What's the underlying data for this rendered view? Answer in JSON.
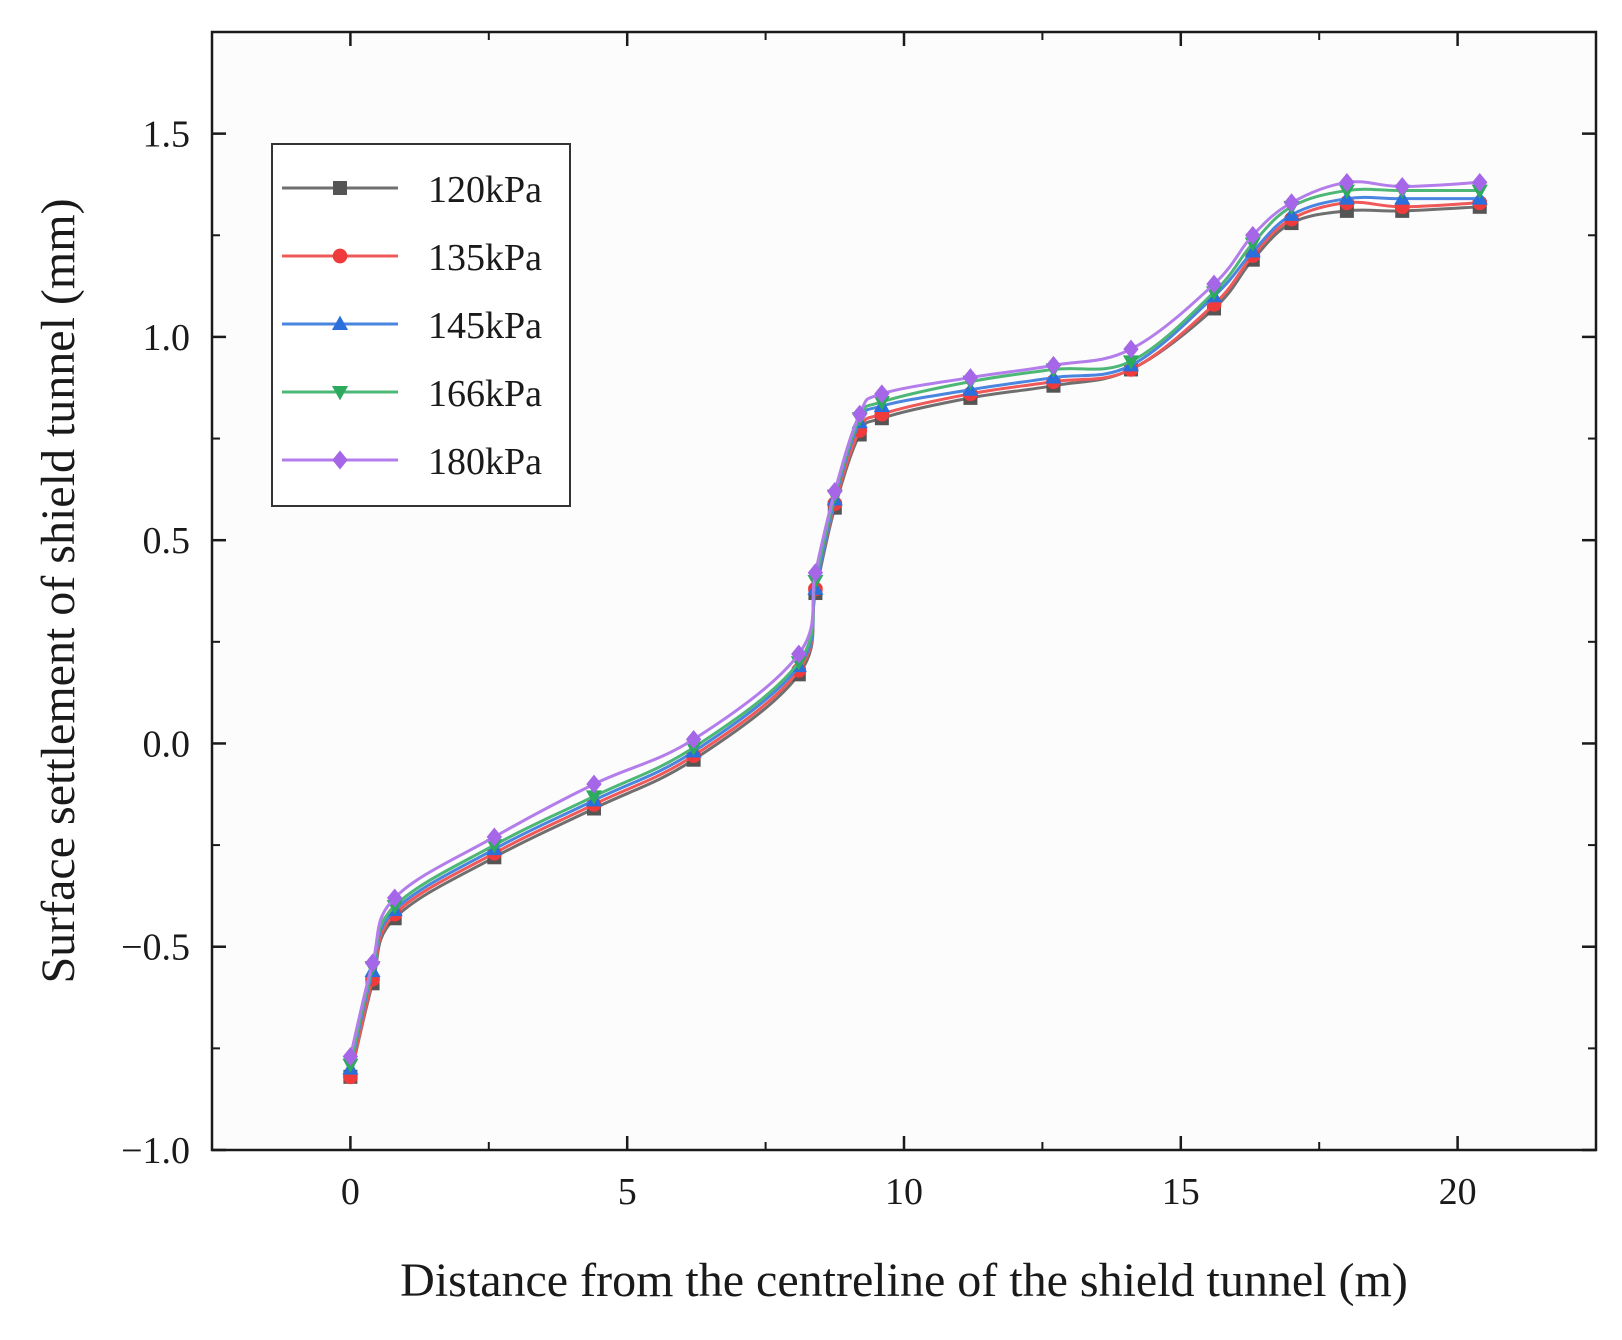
{
  "chart_data": {
    "type": "line",
    "title": "",
    "xlabel": "Distance from the centreline of the shield tunnel (m)",
    "ylabel": "Surface settlement of shield tunnel (mm)",
    "xlim": [
      -2.5,
      22.5
    ],
    "ylim": [
      -1.0,
      1.75
    ],
    "xticks": [
      0,
      5,
      10,
      15,
      20
    ],
    "yticks": [
      -1.0,
      -0.5,
      0.0,
      0.5,
      1.0,
      1.5
    ],
    "xtick_labels": [
      "0",
      "5",
      "10",
      "15",
      "20"
    ],
    "ytick_labels": [
      "−1.0",
      "−0.5",
      "0.0",
      "0.5",
      "1.0",
      "1.5"
    ],
    "legend_position": "top-left",
    "x": [
      0,
      0.4,
      0.8,
      2.6,
      4.4,
      6.2,
      8.1,
      8.4,
      8.75,
      9.2,
      9.6,
      11.2,
      12.7,
      14.1,
      15.6,
      16.3,
      17.0,
      18.0,
      19.0,
      20.4
    ],
    "series": [
      {
        "name": "120kPa",
        "color": "#555555",
        "marker": "square",
        "values": [
          -0.82,
          -0.59,
          -0.43,
          -0.28,
          -0.16,
          -0.04,
          0.17,
          0.37,
          0.58,
          0.76,
          0.8,
          0.85,
          0.88,
          0.92,
          1.07,
          1.19,
          1.28,
          1.31,
          1.31,
          1.32
        ]
      },
      {
        "name": "135kPa",
        "color": "#ef3b3b",
        "marker": "circle",
        "values": [
          -0.82,
          -0.58,
          -0.42,
          -0.27,
          -0.15,
          -0.03,
          0.18,
          0.38,
          0.59,
          0.77,
          0.81,
          0.86,
          0.89,
          0.92,
          1.08,
          1.2,
          1.29,
          1.33,
          1.32,
          1.33
        ]
      },
      {
        "name": "145kPa",
        "color": "#2a6fdb",
        "marker": "triangle-up",
        "values": [
          -0.8,
          -0.56,
          -0.41,
          -0.26,
          -0.14,
          -0.02,
          0.19,
          0.38,
          0.6,
          0.79,
          0.83,
          0.87,
          0.9,
          0.93,
          1.1,
          1.21,
          1.3,
          1.34,
          1.34,
          1.34
        ]
      },
      {
        "name": "166kPa",
        "color": "#2eaa5e",
        "marker": "triangle-down",
        "values": [
          -0.79,
          -0.55,
          -0.4,
          -0.25,
          -0.13,
          -0.01,
          0.2,
          0.4,
          0.61,
          0.8,
          0.84,
          0.89,
          0.92,
          0.94,
          1.11,
          1.23,
          1.32,
          1.36,
          1.36,
          1.36
        ]
      },
      {
        "name": "180kPa",
        "color": "#a566e8",
        "marker": "diamond",
        "values": [
          -0.77,
          -0.54,
          -0.38,
          -0.23,
          -0.1,
          0.01,
          0.22,
          0.42,
          0.62,
          0.81,
          0.86,
          0.9,
          0.93,
          0.97,
          1.13,
          1.25,
          1.33,
          1.38,
          1.37,
          1.38
        ]
      }
    ]
  }
}
